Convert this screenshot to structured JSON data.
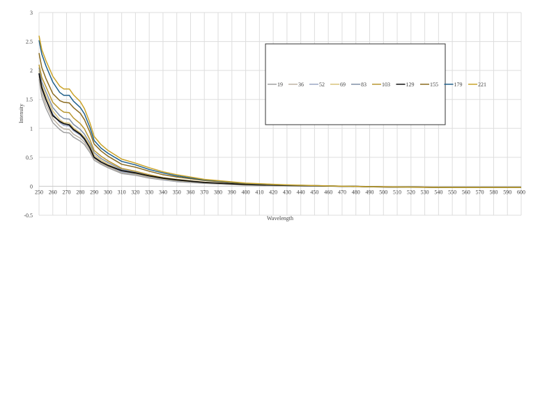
{
  "chart_data": {
    "type": "line",
    "xlabel": "Wavelength",
    "ylabel": "Intensity",
    "xlim": [
      250,
      600
    ],
    "ylim": [
      -0.5,
      3
    ],
    "x_ticks": [
      250,
      260,
      270,
      280,
      290,
      300,
      310,
      320,
      330,
      340,
      350,
      360,
      370,
      380,
      390,
      400,
      410,
      420,
      430,
      440,
      450,
      460,
      470,
      480,
      490,
      500,
      510,
      520,
      530,
      540,
      550,
      560,
      570,
      580,
      590,
      600
    ],
    "y_ticks": [
      -0.5,
      0,
      0.5,
      1,
      1.5,
      2,
      2.5,
      3
    ],
    "y_tick_labels": [
      "-0.5",
      "0",
      "0.5",
      "1",
      "1.5",
      "2",
      "2.5",
      "3"
    ],
    "x_tick_labels": [
      "250",
      "260",
      "270",
      "280",
      "290",
      "300",
      "310",
      "320",
      "330",
      "340",
      "350",
      "360",
      "370",
      "380",
      "390",
      "400",
      "410",
      "420",
      "430",
      "440",
      "450",
      "460",
      "470",
      "480",
      "490",
      "500",
      "510",
      "520",
      "530",
      "540",
      "550",
      "560",
      "570",
      "580",
      "590",
      "600"
    ],
    "grid": true,
    "legend_position": "top-right",
    "x": [
      250,
      252,
      255,
      260,
      265,
      268,
      272,
      275,
      280,
      283,
      287,
      290,
      295,
      300,
      310,
      320,
      330,
      340,
      350,
      370,
      400,
      430,
      470,
      500,
      550,
      600
    ],
    "series": [
      {
        "name": "19",
        "color": "#a0a0a0",
        "values": [
          1.85,
          1.55,
          1.35,
          1.1,
          0.98,
          0.93,
          0.92,
          0.85,
          0.78,
          0.72,
          0.58,
          0.45,
          0.38,
          0.32,
          0.22,
          0.19,
          0.14,
          0.11,
          0.08,
          0.05,
          0.02,
          0.01,
          0.0,
          -0.01,
          -0.02,
          -0.02
        ]
      },
      {
        "name": "36",
        "color": "#bdb3a4",
        "values": [
          1.9,
          1.62,
          1.42,
          1.17,
          1.04,
          0.99,
          0.98,
          0.9,
          0.83,
          0.76,
          0.62,
          0.48,
          0.4,
          0.34,
          0.24,
          0.2,
          0.15,
          0.12,
          0.09,
          0.055,
          0.022,
          0.01,
          0.0,
          -0.01,
          -0.02,
          -0.02
        ]
      },
      {
        "name": "52",
        "color": "#9aa7c4",
        "values": [
          1.95,
          1.68,
          1.5,
          1.25,
          1.1,
          1.05,
          1.04,
          0.96,
          0.88,
          0.8,
          0.66,
          0.51,
          0.42,
          0.36,
          0.25,
          0.21,
          0.16,
          0.12,
          0.09,
          0.058,
          0.024,
          0.012,
          0.0,
          -0.01,
          -0.02,
          -0.02
        ]
      },
      {
        "name": "69",
        "color": "#d9c27a",
        "values": [
          2.0,
          1.74,
          1.56,
          1.3,
          1.15,
          1.1,
          1.09,
          1.01,
          0.92,
          0.85,
          0.7,
          0.54,
          0.45,
          0.38,
          0.27,
          0.22,
          0.17,
          0.13,
          0.1,
          0.062,
          0.026,
          0.013,
          0.0,
          -0.01,
          -0.02,
          -0.02
        ]
      },
      {
        "name": "83",
        "color": "#7f8fa6",
        "values": [
          2.05,
          1.8,
          1.63,
          1.36,
          1.22,
          1.17,
          1.16,
          1.07,
          0.98,
          0.9,
          0.74,
          0.58,
          0.48,
          0.41,
          0.29,
          0.24,
          0.18,
          0.14,
          0.11,
          0.066,
          0.028,
          0.014,
          0.0,
          -0.01,
          -0.02,
          -0.02
        ]
      },
      {
        "name": "103",
        "color": "#b8952f",
        "values": [
          2.1,
          1.88,
          1.72,
          1.45,
          1.33,
          1.28,
          1.27,
          1.18,
          1.08,
          0.99,
          0.8,
          0.62,
          0.52,
          0.44,
          0.31,
          0.26,
          0.2,
          0.15,
          0.12,
          0.07,
          0.03,
          0.015,
          0.0,
          -0.01,
          -0.02,
          -0.02
        ]
      },
      {
        "name": "129",
        "color": "#111111",
        "values": [
          1.95,
          1.7,
          1.5,
          1.22,
          1.12,
          1.08,
          1.06,
          0.98,
          0.9,
          0.82,
          0.66,
          0.5,
          0.42,
          0.36,
          0.27,
          0.23,
          0.18,
          0.14,
          0.11,
          0.065,
          0.03,
          0.015,
          0.0,
          -0.01,
          -0.02,
          -0.02
        ]
      },
      {
        "name": "155",
        "color": "#8a6a1e",
        "values": [
          2.3,
          2.05,
          1.86,
          1.6,
          1.48,
          1.45,
          1.44,
          1.36,
          1.26,
          1.15,
          0.93,
          0.73,
          0.61,
          0.52,
          0.38,
          0.33,
          0.26,
          0.2,
          0.16,
          0.1,
          0.045,
          0.02,
          0.0,
          -0.01,
          -0.02,
          -0.02
        ]
      },
      {
        "name": "179",
        "color": "#1f5f8b",
        "values": [
          2.52,
          2.28,
          2.08,
          1.8,
          1.62,
          1.57,
          1.57,
          1.47,
          1.36,
          1.25,
          1.01,
          0.79,
          0.66,
          0.57,
          0.43,
          0.37,
          0.29,
          0.23,
          0.18,
          0.11,
          0.05,
          0.022,
          0.0,
          -0.01,
          -0.02,
          -0.02
        ]
      },
      {
        "name": "221",
        "color": "#c9a227",
        "values": [
          2.6,
          2.36,
          2.17,
          1.9,
          1.73,
          1.68,
          1.68,
          1.58,
          1.46,
          1.34,
          1.09,
          0.86,
          0.72,
          0.62,
          0.47,
          0.4,
          0.32,
          0.25,
          0.2,
          0.12,
          0.055,
          0.025,
          0.0,
          -0.01,
          -0.02,
          -0.02
        ]
      }
    ]
  }
}
